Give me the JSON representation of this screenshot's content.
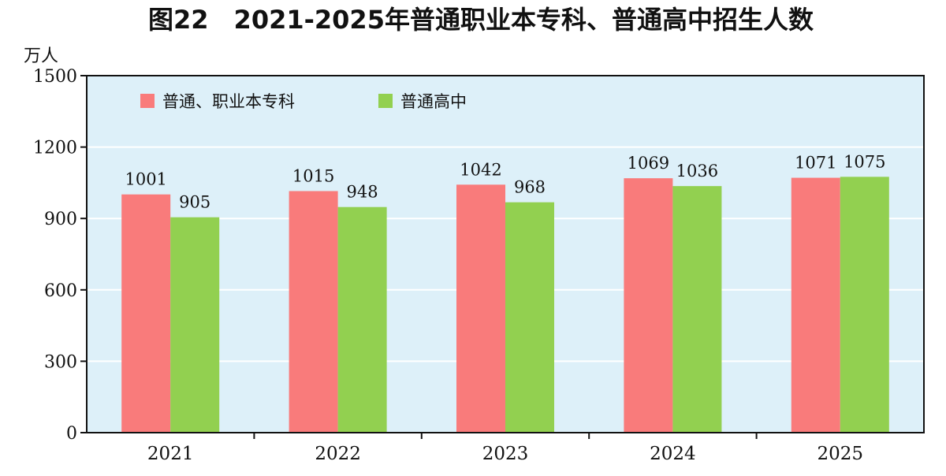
{
  "colors": {
    "series_a": "#f97b7b",
    "series_b": "#92d050",
    "plot_bg": "#ddf0f9",
    "grid": "#ffffff",
    "axis": "#111111"
  },
  "chart_data": {
    "type": "bar",
    "title": "图22　2021-2025年普通职业本专科、普通高中招生人数",
    "ylabel": "万人",
    "xlabel": "",
    "categories": [
      "2021",
      "2022",
      "2023",
      "2024",
      "2025"
    ],
    "series": [
      {
        "name": "普通、职业本专科",
        "values": [
          1001,
          1015,
          1042,
          1069,
          1071
        ]
      },
      {
        "name": "普通高中",
        "values": [
          905,
          948,
          968,
          1036,
          1075
        ]
      }
    ],
    "ylim": [
      0,
      1500
    ],
    "yticks": [
      0,
      300,
      600,
      900,
      1200,
      1500
    ],
    "grid": true,
    "legend": "top-left"
  }
}
